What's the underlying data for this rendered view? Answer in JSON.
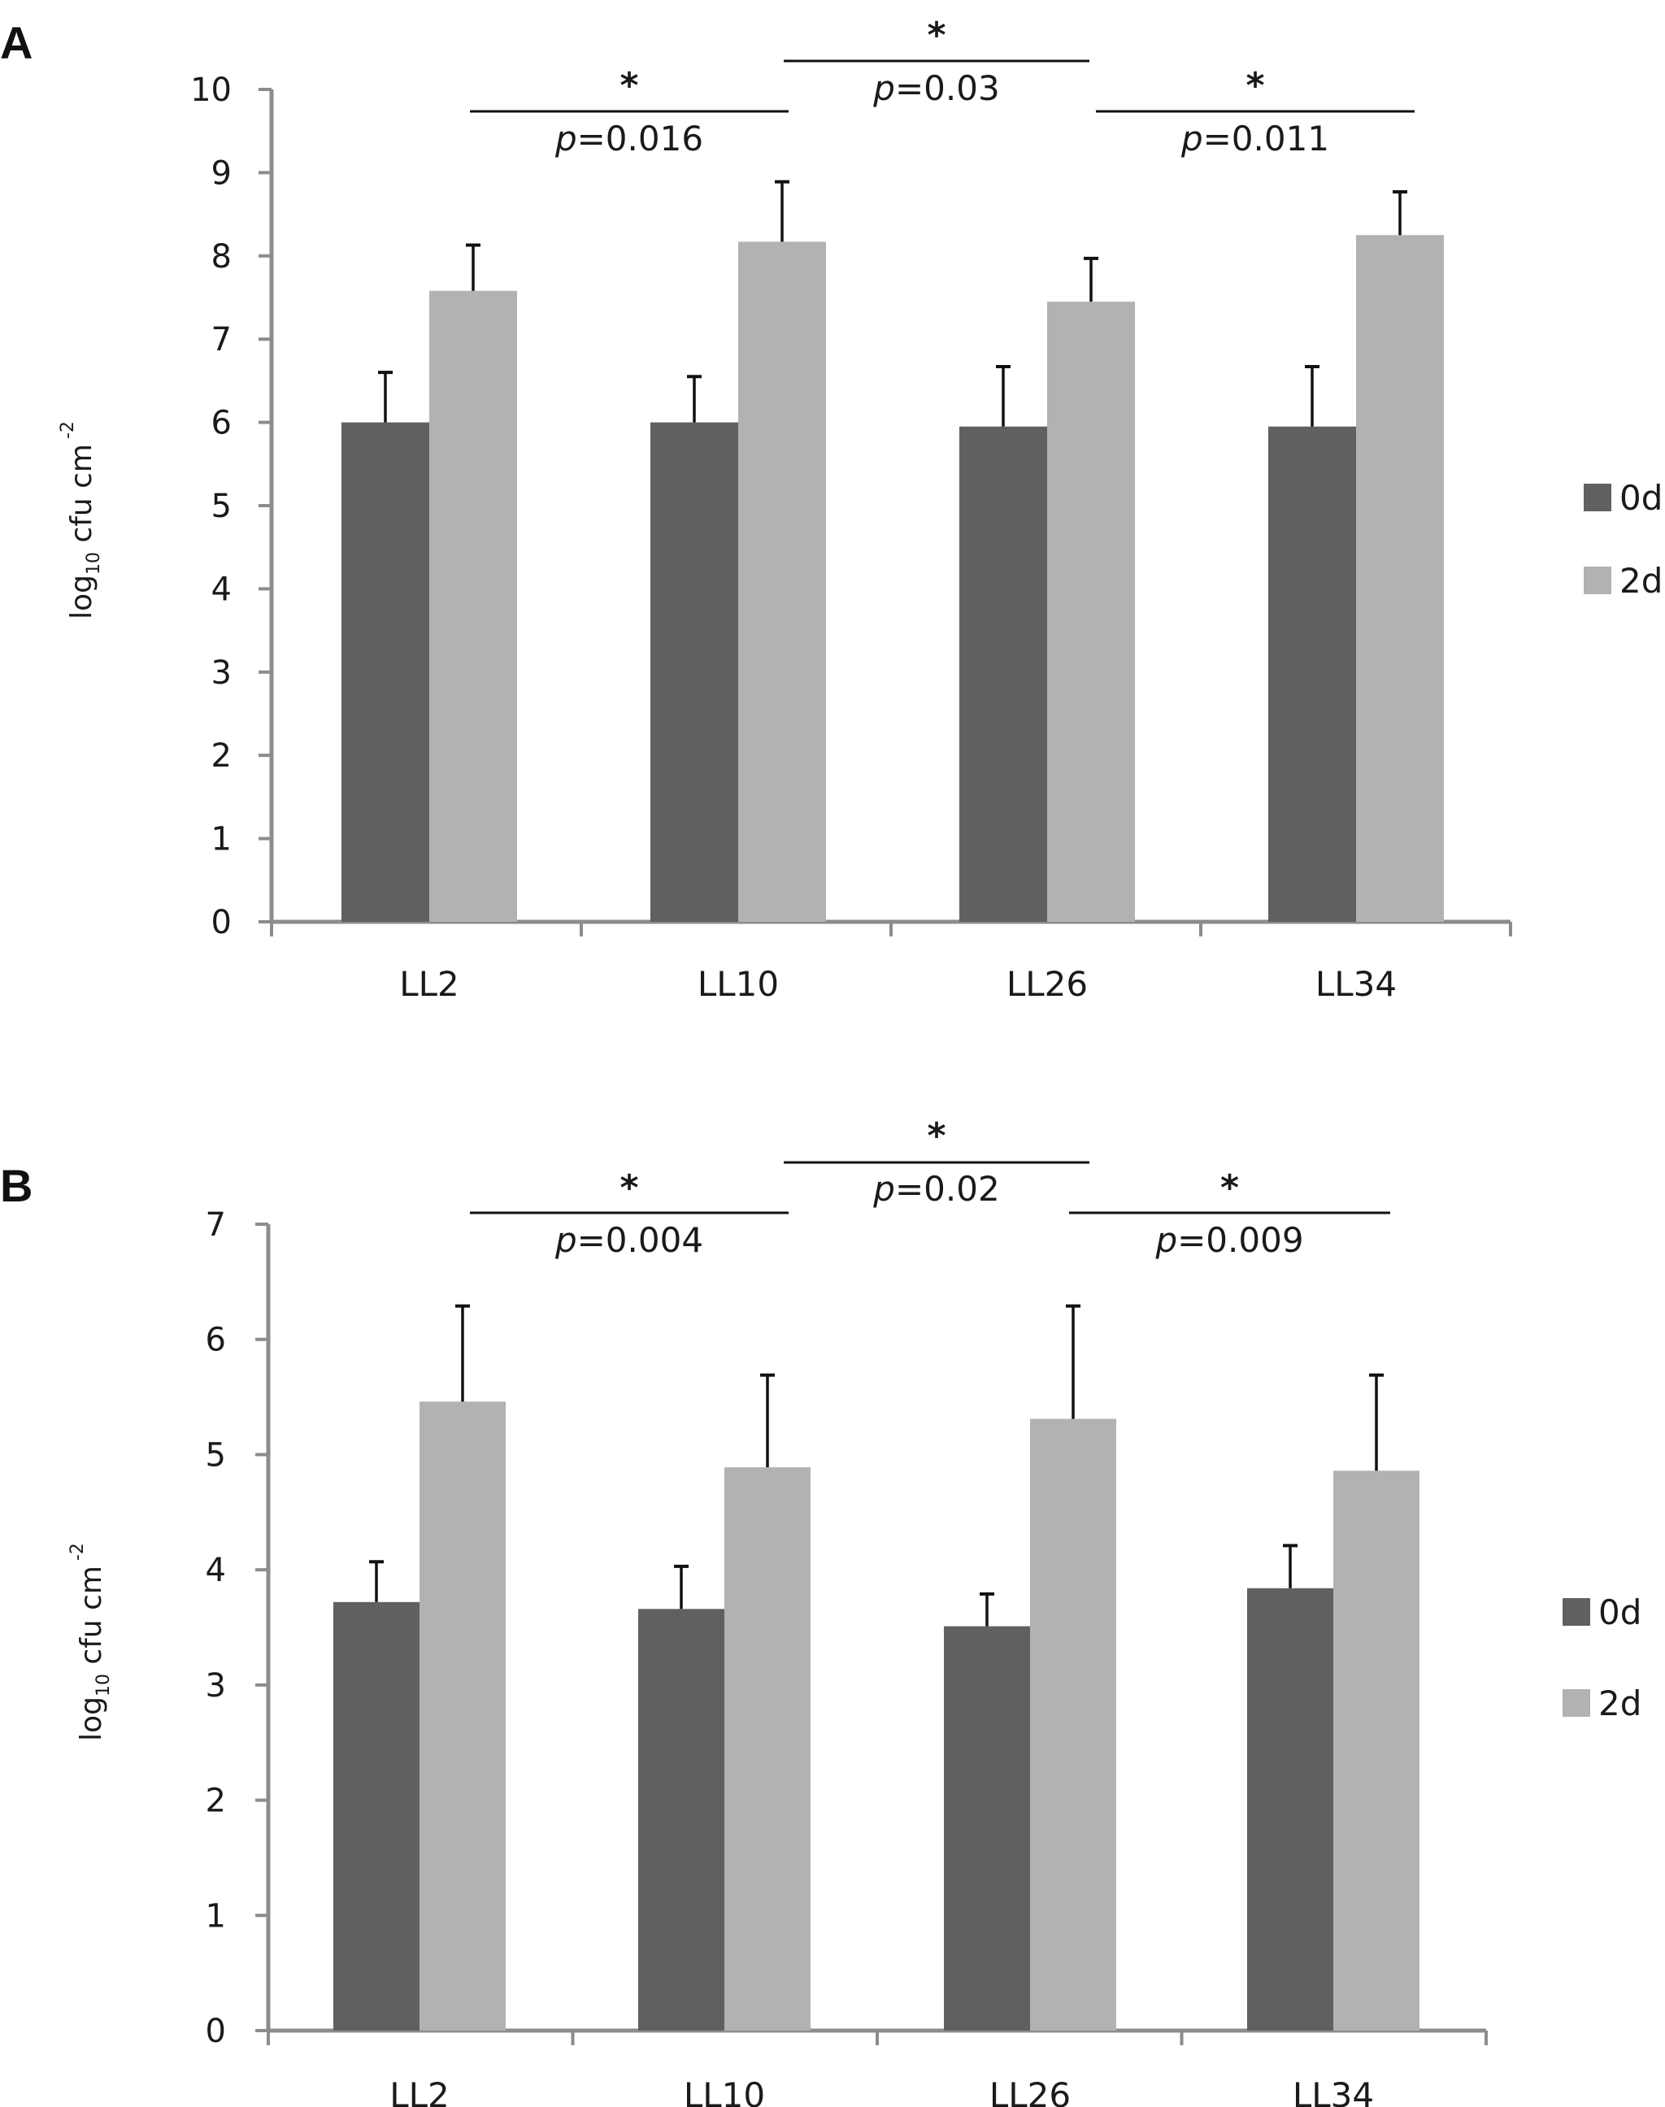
{
  "colors": {
    "axis": "#8c8c8c",
    "series_0d": "#606060",
    "series_2d": "#b2b2b2",
    "error_bar": "#111111",
    "bracket": "#111111"
  },
  "chart_data": [
    {
      "type": "bar",
      "panel": "A",
      "categories": [
        "LL2",
        "LL10",
        "LL26",
        "LL34"
      ],
      "series": [
        {
          "name": "0d",
          "values": [
            6.0,
            6.0,
            5.95,
            5.95
          ],
          "errors": [
            0.6,
            0.55,
            0.72,
            0.72
          ]
        },
        {
          "name": "2d",
          "values": [
            7.58,
            8.17,
            7.45,
            8.25
          ],
          "errors": [
            0.55,
            0.72,
            0.52,
            0.52
          ]
        }
      ],
      "ylabel": {
        "main": "log",
        "sub": "10",
        "text": " cfu cm",
        "sup": "-2"
      },
      "ylim": [
        0,
        10
      ],
      "yticks": [
        "0",
        "1",
        "2",
        "3",
        "4",
        "5",
        "6",
        "7",
        "8",
        "9",
        "10"
      ],
      "legend_position": "right",
      "grid": false,
      "significance": [
        {
          "from": "LL2",
          "to": "LL10",
          "star": "*",
          "p_symbol": "p",
          "p_value": "=0.016"
        },
        {
          "from": "LL10",
          "to": "LL26",
          "star": "*",
          "p_symbol": "p",
          "p_value": "=0.03"
        },
        {
          "from": "LL26",
          "to": "LL34",
          "star": "*",
          "p_symbol": "p",
          "p_value": "=0.011"
        }
      ]
    },
    {
      "type": "bar",
      "panel": "B",
      "categories": [
        "LL2",
        "LL10",
        "LL26",
        "LL34"
      ],
      "series": [
        {
          "name": "0d",
          "values": [
            3.72,
            3.66,
            3.51,
            3.84
          ],
          "errors": [
            0.35,
            0.37,
            0.28,
            0.37
          ]
        },
        {
          "name": "2d",
          "values": [
            5.46,
            4.89,
            5.31,
            4.86
          ],
          "errors": [
            0.83,
            0.8,
            0.98,
            0.83
          ]
        }
      ],
      "ylabel": {
        "main": "log",
        "sub": "10",
        "text": " cfu cm",
        "sup": "-2"
      },
      "ylim": [
        0,
        7
      ],
      "yticks": [
        "0",
        "1",
        "2",
        "3",
        "4",
        "5",
        "6",
        "7"
      ],
      "legend_position": "right",
      "grid": false,
      "significance": [
        {
          "from": "LL2",
          "to": "LL10",
          "star": "*",
          "p_symbol": "p",
          "p_value": "=0.004"
        },
        {
          "from": "LL10",
          "to": "LL26",
          "star": "*",
          "p_symbol": "p",
          "p_value": "=0.02"
        },
        {
          "from": "LL26",
          "to": "LL34",
          "star": "*",
          "p_symbol": "p",
          "p_value": "=0.009"
        }
      ]
    }
  ]
}
